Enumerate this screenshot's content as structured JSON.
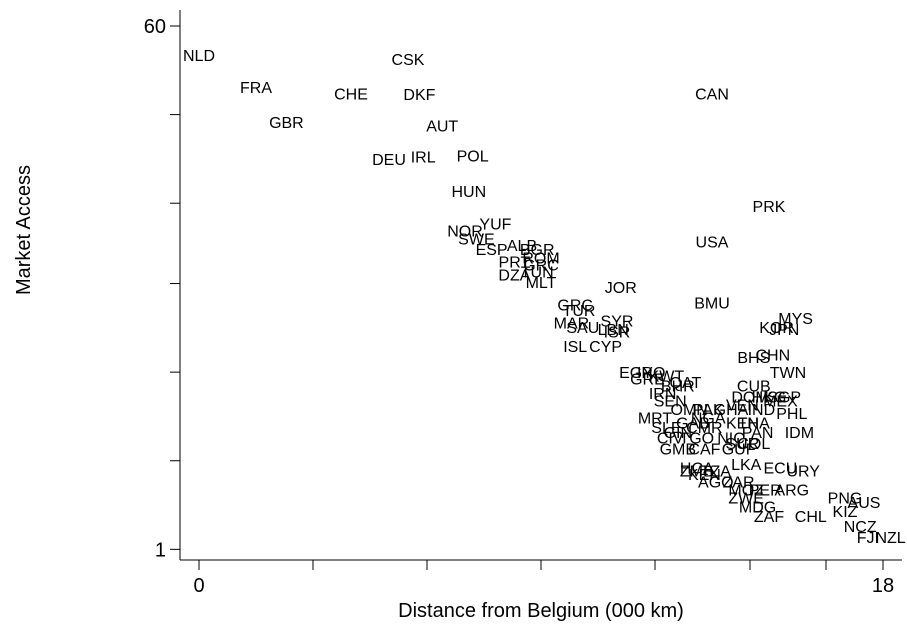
{
  "chart_data": {
    "type": "scatter",
    "title": "",
    "xlabel": "Distance from Belgium (000 km)",
    "ylabel": "Market Access",
    "xlim": [
      -0.5,
      18.5
    ],
    "ylim": [
      0.92,
      68
    ],
    "ylog": true,
    "grid": false,
    "legend": "none",
    "x_tick_labels": [
      {
        "value": 0,
        "label": "0"
      },
      {
        "value": 18,
        "label": "18"
      }
    ],
    "x_minor_ticks": [
      3,
      6,
      9,
      12,
      14.5,
      16.5
    ],
    "y_tick_labels": [
      {
        "value": 1,
        "label": "1"
      },
      {
        "value": 60,
        "label": "60"
      }
    ],
    "y_minor_ticks": [
      2,
      4,
      8,
      15,
      30
    ],
    "points": [
      {
        "label": "NLD",
        "x": 0.0,
        "y": 47.9
      },
      {
        "label": "FRA",
        "x": 1.5,
        "y": 37.3
      },
      {
        "label": "CHE",
        "x": 4.0,
        "y": 35.4
      },
      {
        "label": "CSK",
        "x": 5.5,
        "y": 46.4
      },
      {
        "label": "DKF",
        "x": 5.8,
        "y": 35.2
      },
      {
        "label": "GBR",
        "x": 2.3,
        "y": 28.3
      },
      {
        "label": "CAN",
        "x": 13.5,
        "y": 35.4
      },
      {
        "label": "AUT",
        "x": 6.4,
        "y": 27.6
      },
      {
        "label": "DEU",
        "x": 5.0,
        "y": 21.2
      },
      {
        "label": "IRL",
        "x": 5.9,
        "y": 21.6
      },
      {
        "label": "POL",
        "x": 7.2,
        "y": 21.8
      },
      {
        "label": "HUN",
        "x": 7.1,
        "y": 16.5
      },
      {
        "label": "PRK",
        "x": 15.0,
        "y": 14.7
      },
      {
        "label": "YUF",
        "x": 7.8,
        "y": 12.8
      },
      {
        "label": "NOR",
        "x": 7.0,
        "y": 12.1
      },
      {
        "label": "SWE",
        "x": 7.3,
        "y": 11.4
      },
      {
        "label": "USA",
        "x": 13.5,
        "y": 11.1
      },
      {
        "label": "ESP",
        "x": 7.7,
        "y": 10.5
      },
      {
        "label": "ALB",
        "x": 8.5,
        "y": 10.8
      },
      {
        "label": "BGR",
        "x": 8.9,
        "y": 10.5
      },
      {
        "label": "ROM",
        "x": 9.0,
        "y": 9.8
      },
      {
        "label": "PRT",
        "x": 8.3,
        "y": 9.5
      },
      {
        "label": "GRC",
        "x": 9.0,
        "y": 9.3
      },
      {
        "label": "DZA",
        "x": 8.3,
        "y": 8.6
      },
      {
        "label": "TUN",
        "x": 8.9,
        "y": 8.8
      },
      {
        "label": "MLT",
        "x": 9.0,
        "y": 8.1
      },
      {
        "label": "JOR",
        "x": 11.1,
        "y": 7.8
      },
      {
        "label": "BMU",
        "x": 13.5,
        "y": 6.9
      },
      {
        "label": "GRC",
        "x": 9.9,
        "y": 6.8
      },
      {
        "label": "TUR",
        "x": 10.0,
        "y": 6.5
      },
      {
        "label": "MAR",
        "x": 9.8,
        "y": 5.9
      },
      {
        "label": "SAU",
        "x": 10.1,
        "y": 5.7
      },
      {
        "label": "SYR",
        "x": 11.0,
        "y": 6.0
      },
      {
        "label": "LBN",
        "x": 10.9,
        "y": 5.6
      },
      {
        "label": "ISR",
        "x": 11.0,
        "y": 5.5
      },
      {
        "label": "MYS",
        "x": 15.7,
        "y": 6.1
      },
      {
        "label": "KOR",
        "x": 15.2,
        "y": 5.7
      },
      {
        "label": "JPN",
        "x": 15.4,
        "y": 5.6
      },
      {
        "label": "ISL",
        "x": 9.9,
        "y": 4.9
      },
      {
        "label": "CYP",
        "x": 10.7,
        "y": 4.9
      },
      {
        "label": "BHS",
        "x": 14.6,
        "y": 4.5
      },
      {
        "label": "CHN",
        "x": 15.1,
        "y": 4.6
      },
      {
        "label": "TWN",
        "x": 15.5,
        "y": 4.0
      },
      {
        "label": "EGY",
        "x": 11.5,
        "y": 4.0
      },
      {
        "label": "IRQ",
        "x": 11.9,
        "y": 4.0
      },
      {
        "label": "GRE",
        "x": 11.8,
        "y": 3.8
      },
      {
        "label": "KWT",
        "x": 12.3,
        "y": 3.9
      },
      {
        "label": "QAT",
        "x": 12.8,
        "y": 3.7
      },
      {
        "label": "BHR",
        "x": 12.6,
        "y": 3.6
      },
      {
        "label": "CUB",
        "x": 14.6,
        "y": 3.6
      },
      {
        "label": "IRN",
        "x": 12.2,
        "y": 3.4
      },
      {
        "label": "SEN",
        "x": 12.4,
        "y": 3.2
      },
      {
        "label": "SGP",
        "x": 15.4,
        "y": 3.3
      },
      {
        "label": "OMN",
        "x": 12.9,
        "y": 3.0
      },
      {
        "label": "HKG",
        "x": 15.0,
        "y": 3.3
      },
      {
        "label": "DOM",
        "x": 14.5,
        "y": 3.3
      },
      {
        "label": "MEX",
        "x": 15.3,
        "y": 3.2
      },
      {
        "label": "GHA",
        "x": 14.0,
        "y": 3.0
      },
      {
        "label": "PAK",
        "x": 13.4,
        "y": 3.0
      },
      {
        "label": "IND",
        "x": 14.8,
        "y": 3.0
      },
      {
        "label": "VEN",
        "x": 14.3,
        "y": 3.1
      },
      {
        "label": "PHL",
        "x": 15.6,
        "y": 2.9
      },
      {
        "label": "MRT",
        "x": 12.0,
        "y": 2.8
      },
      {
        "label": "GAB",
        "x": 13.0,
        "y": 2.7
      },
      {
        "label": "NGA",
        "x": 13.4,
        "y": 2.8
      },
      {
        "label": "CMR",
        "x": 13.3,
        "y": 2.6
      },
      {
        "label": "KEN",
        "x": 14.3,
        "y": 2.7
      },
      {
        "label": "THA",
        "x": 14.6,
        "y": 2.7
      },
      {
        "label": "SLE",
        "x": 12.3,
        "y": 2.6
      },
      {
        "label": "GIN",
        "x": 12.6,
        "y": 2.5
      },
      {
        "label": "CIV",
        "x": 12.4,
        "y": 2.4
      },
      {
        "label": "TGO",
        "x": 13.1,
        "y": 2.4
      },
      {
        "label": "PAN",
        "x": 14.7,
        "y": 2.5
      },
      {
        "label": "IDM",
        "x": 15.8,
        "y": 2.5
      },
      {
        "label": "NIC",
        "x": 14.0,
        "y": 2.4
      },
      {
        "label": "SUR",
        "x": 14.3,
        "y": 2.3
      },
      {
        "label": "COL",
        "x": 14.6,
        "y": 2.3
      },
      {
        "label": "CAF",
        "x": 13.3,
        "y": 2.2
      },
      {
        "label": "GMB",
        "x": 12.6,
        "y": 2.2
      },
      {
        "label": "GUF",
        "x": 14.2,
        "y": 2.2
      },
      {
        "label": "HCA",
        "x": 13.1,
        "y": 1.9
      },
      {
        "label": "ECU",
        "x": 15.3,
        "y": 1.9
      },
      {
        "label": "LKA",
        "x": 14.4,
        "y": 1.95
      },
      {
        "label": "ZMB",
        "x": 13.1,
        "y": 1.85
      },
      {
        "label": "TZA",
        "x": 13.6,
        "y": 1.85
      },
      {
        "label": "URY",
        "x": 15.9,
        "y": 1.85
      },
      {
        "label": "KEN",
        "x": 13.3,
        "y": 1.8
      },
      {
        "label": "AGO",
        "x": 13.6,
        "y": 1.7
      },
      {
        "label": "ZAR",
        "x": 14.2,
        "y": 1.7
      },
      {
        "label": "MOZ",
        "x": 14.4,
        "y": 1.6
      },
      {
        "label": "PER",
        "x": 14.9,
        "y": 1.6
      },
      {
        "label": "ARG",
        "x": 15.6,
        "y": 1.6
      },
      {
        "label": "ZWE",
        "x": 14.4,
        "y": 1.5
      },
      {
        "label": "MDG",
        "x": 14.7,
        "y": 1.4
      },
      {
        "label": "PNG",
        "x": 17.0,
        "y": 1.5
      },
      {
        "label": "AUS",
        "x": 17.5,
        "y": 1.45
      },
      {
        "label": "ZAF",
        "x": 15.0,
        "y": 1.3
      },
      {
        "label": "CHL",
        "x": 16.1,
        "y": 1.3
      },
      {
        "label": "KIZ",
        "x": 17.0,
        "y": 1.35
      },
      {
        "label": "NCZ",
        "x": 17.4,
        "y": 1.2
      },
      {
        "label": "FJI",
        "x": 17.6,
        "y": 1.1
      },
      {
        "label": "NZL",
        "x": 18.2,
        "y": 1.1
      }
    ]
  }
}
